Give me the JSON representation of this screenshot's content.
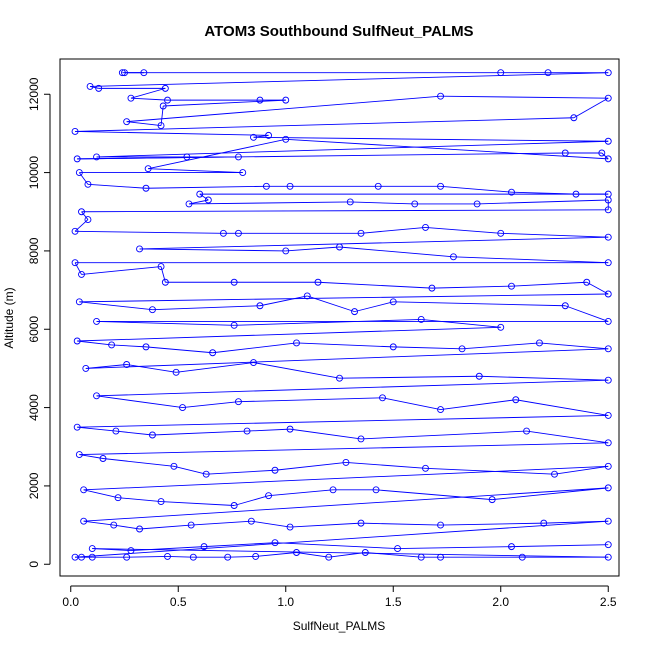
{
  "chart_data": {
    "type": "scatter",
    "title": "ATOM3 Southbound SulfNeut_PALMS",
    "xlabel": "SulfNeut_PALMS",
    "ylabel": "Altitude (m)",
    "xlim": [
      -0.05,
      2.55
    ],
    "ylim": [
      -300,
      12900
    ],
    "x_ticks": [
      0,
      0.5,
      1,
      1.5,
      2,
      2.5
    ],
    "x_tick_labels": [
      "0.0",
      "0.5",
      "1.0",
      "1.5",
      "2.0",
      "2.5"
    ],
    "y_ticks": [
      0,
      2000,
      4000,
      6000,
      8000,
      10000,
      12000
    ],
    "y_tick_labels": [
      "0",
      "2000",
      "4000",
      "6000",
      "8000",
      "10000",
      "12000"
    ],
    "grid": false,
    "legend": "none",
    "marker": "open-circle",
    "series": [
      {
        "color": "#0000ff",
        "points": [
          [
            0.24,
            12550
          ],
          [
            0.34,
            12550
          ],
          [
            0.25,
            12550
          ],
          [
            2.0,
            12550
          ],
          [
            2.22,
            12550
          ],
          [
            2.5,
            12550
          ],
          [
            0.09,
            12200
          ],
          [
            0.13,
            12150
          ],
          [
            0.44,
            12150
          ],
          [
            0.28,
            11900
          ],
          [
            0.45,
            11850
          ],
          [
            0.88,
            11850
          ],
          [
            1.0,
            11850
          ],
          [
            0.43,
            11700
          ],
          [
            0.42,
            11200
          ],
          [
            0.26,
            11300
          ],
          [
            1.72,
            11950
          ],
          [
            2.5,
            11900
          ],
          [
            2.34,
            11400
          ],
          [
            0.02,
            11050
          ],
          [
            0.92,
            10950
          ],
          [
            0.85,
            10900
          ],
          [
            2.5,
            10800
          ],
          [
            0.12,
            10400
          ],
          [
            0.54,
            10400
          ],
          [
            0.78,
            10400
          ],
          [
            0.03,
            10350
          ],
          [
            2.3,
            10500
          ],
          [
            2.47,
            10500
          ],
          [
            2.5,
            10350
          ],
          [
            1.0,
            10850
          ],
          [
            0.36,
            10100
          ],
          [
            0.8,
            10000
          ],
          [
            0.04,
            10000
          ],
          [
            0.08,
            9700
          ],
          [
            0.35,
            9600
          ],
          [
            0.91,
            9650
          ],
          [
            1.02,
            9650
          ],
          [
            1.43,
            9650
          ],
          [
            1.72,
            9650
          ],
          [
            2.05,
            9500
          ],
          [
            2.35,
            9450
          ],
          [
            2.5,
            9450
          ],
          [
            0.6,
            9450
          ],
          [
            0.64,
            9300
          ],
          [
            0.55,
            9200
          ],
          [
            1.3,
            9250
          ],
          [
            1.6,
            9200
          ],
          [
            1.89,
            9200
          ],
          [
            2.5,
            9300
          ],
          [
            2.5,
            9050
          ],
          [
            0.05,
            9000
          ],
          [
            0.08,
            8800
          ],
          [
            0.02,
            8500
          ],
          [
            0.71,
            8450
          ],
          [
            0.78,
            8450
          ],
          [
            1.35,
            8450
          ],
          [
            1.65,
            8600
          ],
          [
            2.0,
            8450
          ],
          [
            2.5,
            8350
          ],
          [
            0.32,
            8050
          ],
          [
            1.0,
            8000
          ],
          [
            1.25,
            8100
          ],
          [
            1.78,
            7850
          ],
          [
            2.5,
            7700
          ],
          [
            0.02,
            7700
          ],
          [
            0.05,
            7400
          ],
          [
            0.42,
            7600
          ],
          [
            0.44,
            7200
          ],
          [
            0.76,
            7200
          ],
          [
            1.15,
            7200
          ],
          [
            1.68,
            7050
          ],
          [
            2.05,
            7100
          ],
          [
            2.4,
            7200
          ],
          [
            2.5,
            6900
          ],
          [
            0.04,
            6700
          ],
          [
            0.38,
            6500
          ],
          [
            0.88,
            6600
          ],
          [
            1.1,
            6850
          ],
          [
            1.32,
            6450
          ],
          [
            1.5,
            6700
          ],
          [
            2.3,
            6600
          ],
          [
            2.5,
            6200
          ],
          [
            0.12,
            6200
          ],
          [
            0.76,
            6100
          ],
          [
            1.63,
            6250
          ],
          [
            2.0,
            6050
          ],
          [
            0.03,
            5700
          ],
          [
            0.19,
            5600
          ],
          [
            0.35,
            5550
          ],
          [
            0.66,
            5400
          ],
          [
            1.05,
            5650
          ],
          [
            1.5,
            5550
          ],
          [
            1.82,
            5500
          ],
          [
            2.18,
            5650
          ],
          [
            2.5,
            5500
          ],
          [
            0.07,
            5000
          ],
          [
            0.26,
            5100
          ],
          [
            0.49,
            4900
          ],
          [
            0.85,
            5150
          ],
          [
            1.25,
            4750
          ],
          [
            1.9,
            4800
          ],
          [
            2.5,
            4700
          ],
          [
            0.12,
            4300
          ],
          [
            0.52,
            4000
          ],
          [
            0.78,
            4150
          ],
          [
            1.45,
            4250
          ],
          [
            1.72,
            3950
          ],
          [
            2.07,
            4200
          ],
          [
            2.5,
            3800
          ],
          [
            0.03,
            3500
          ],
          [
            0.21,
            3400
          ],
          [
            0.38,
            3300
          ],
          [
            0.82,
            3400
          ],
          [
            1.02,
            3450
          ],
          [
            1.35,
            3200
          ],
          [
            2.12,
            3400
          ],
          [
            2.5,
            3100
          ],
          [
            0.04,
            2800
          ],
          [
            0.15,
            2700
          ],
          [
            0.48,
            2500
          ],
          [
            0.63,
            2300
          ],
          [
            0.95,
            2400
          ],
          [
            1.28,
            2600
          ],
          [
            1.65,
            2450
          ],
          [
            2.25,
            2300
          ],
          [
            2.5,
            2500
          ],
          [
            0.06,
            1900
          ],
          [
            0.22,
            1700
          ],
          [
            0.42,
            1600
          ],
          [
            0.76,
            1500
          ],
          [
            0.92,
            1750
          ],
          [
            1.22,
            1900
          ],
          [
            1.42,
            1900
          ],
          [
            1.96,
            1650
          ],
          [
            2.5,
            1950
          ],
          [
            0.06,
            1100
          ],
          [
            0.2,
            1000
          ],
          [
            0.32,
            900
          ],
          [
            0.56,
            1000
          ],
          [
            0.84,
            1100
          ],
          [
            1.02,
            950
          ],
          [
            1.35,
            1050
          ],
          [
            1.72,
            1000
          ],
          [
            2.2,
            1050
          ],
          [
            2.5,
            1100
          ],
          [
            0.02,
            180
          ],
          [
            0.05,
            180
          ],
          [
            0.1,
            180
          ],
          [
            0.26,
            180
          ],
          [
            0.45,
            200
          ],
          [
            0.57,
            180
          ],
          [
            0.73,
            180
          ],
          [
            0.86,
            200
          ],
          [
            1.05,
            300
          ],
          [
            1.2,
            180
          ],
          [
            1.37,
            300
          ],
          [
            1.63,
            180
          ],
          [
            1.72,
            180
          ],
          [
            2.1,
            180
          ],
          [
            2.5,
            180
          ],
          [
            0.1,
            400
          ],
          [
            0.28,
            350
          ],
          [
            0.62,
            450
          ],
          [
            0.95,
            550
          ],
          [
            1.52,
            400
          ],
          [
            2.05,
            450
          ],
          [
            2.5,
            500
          ]
        ]
      }
    ]
  }
}
